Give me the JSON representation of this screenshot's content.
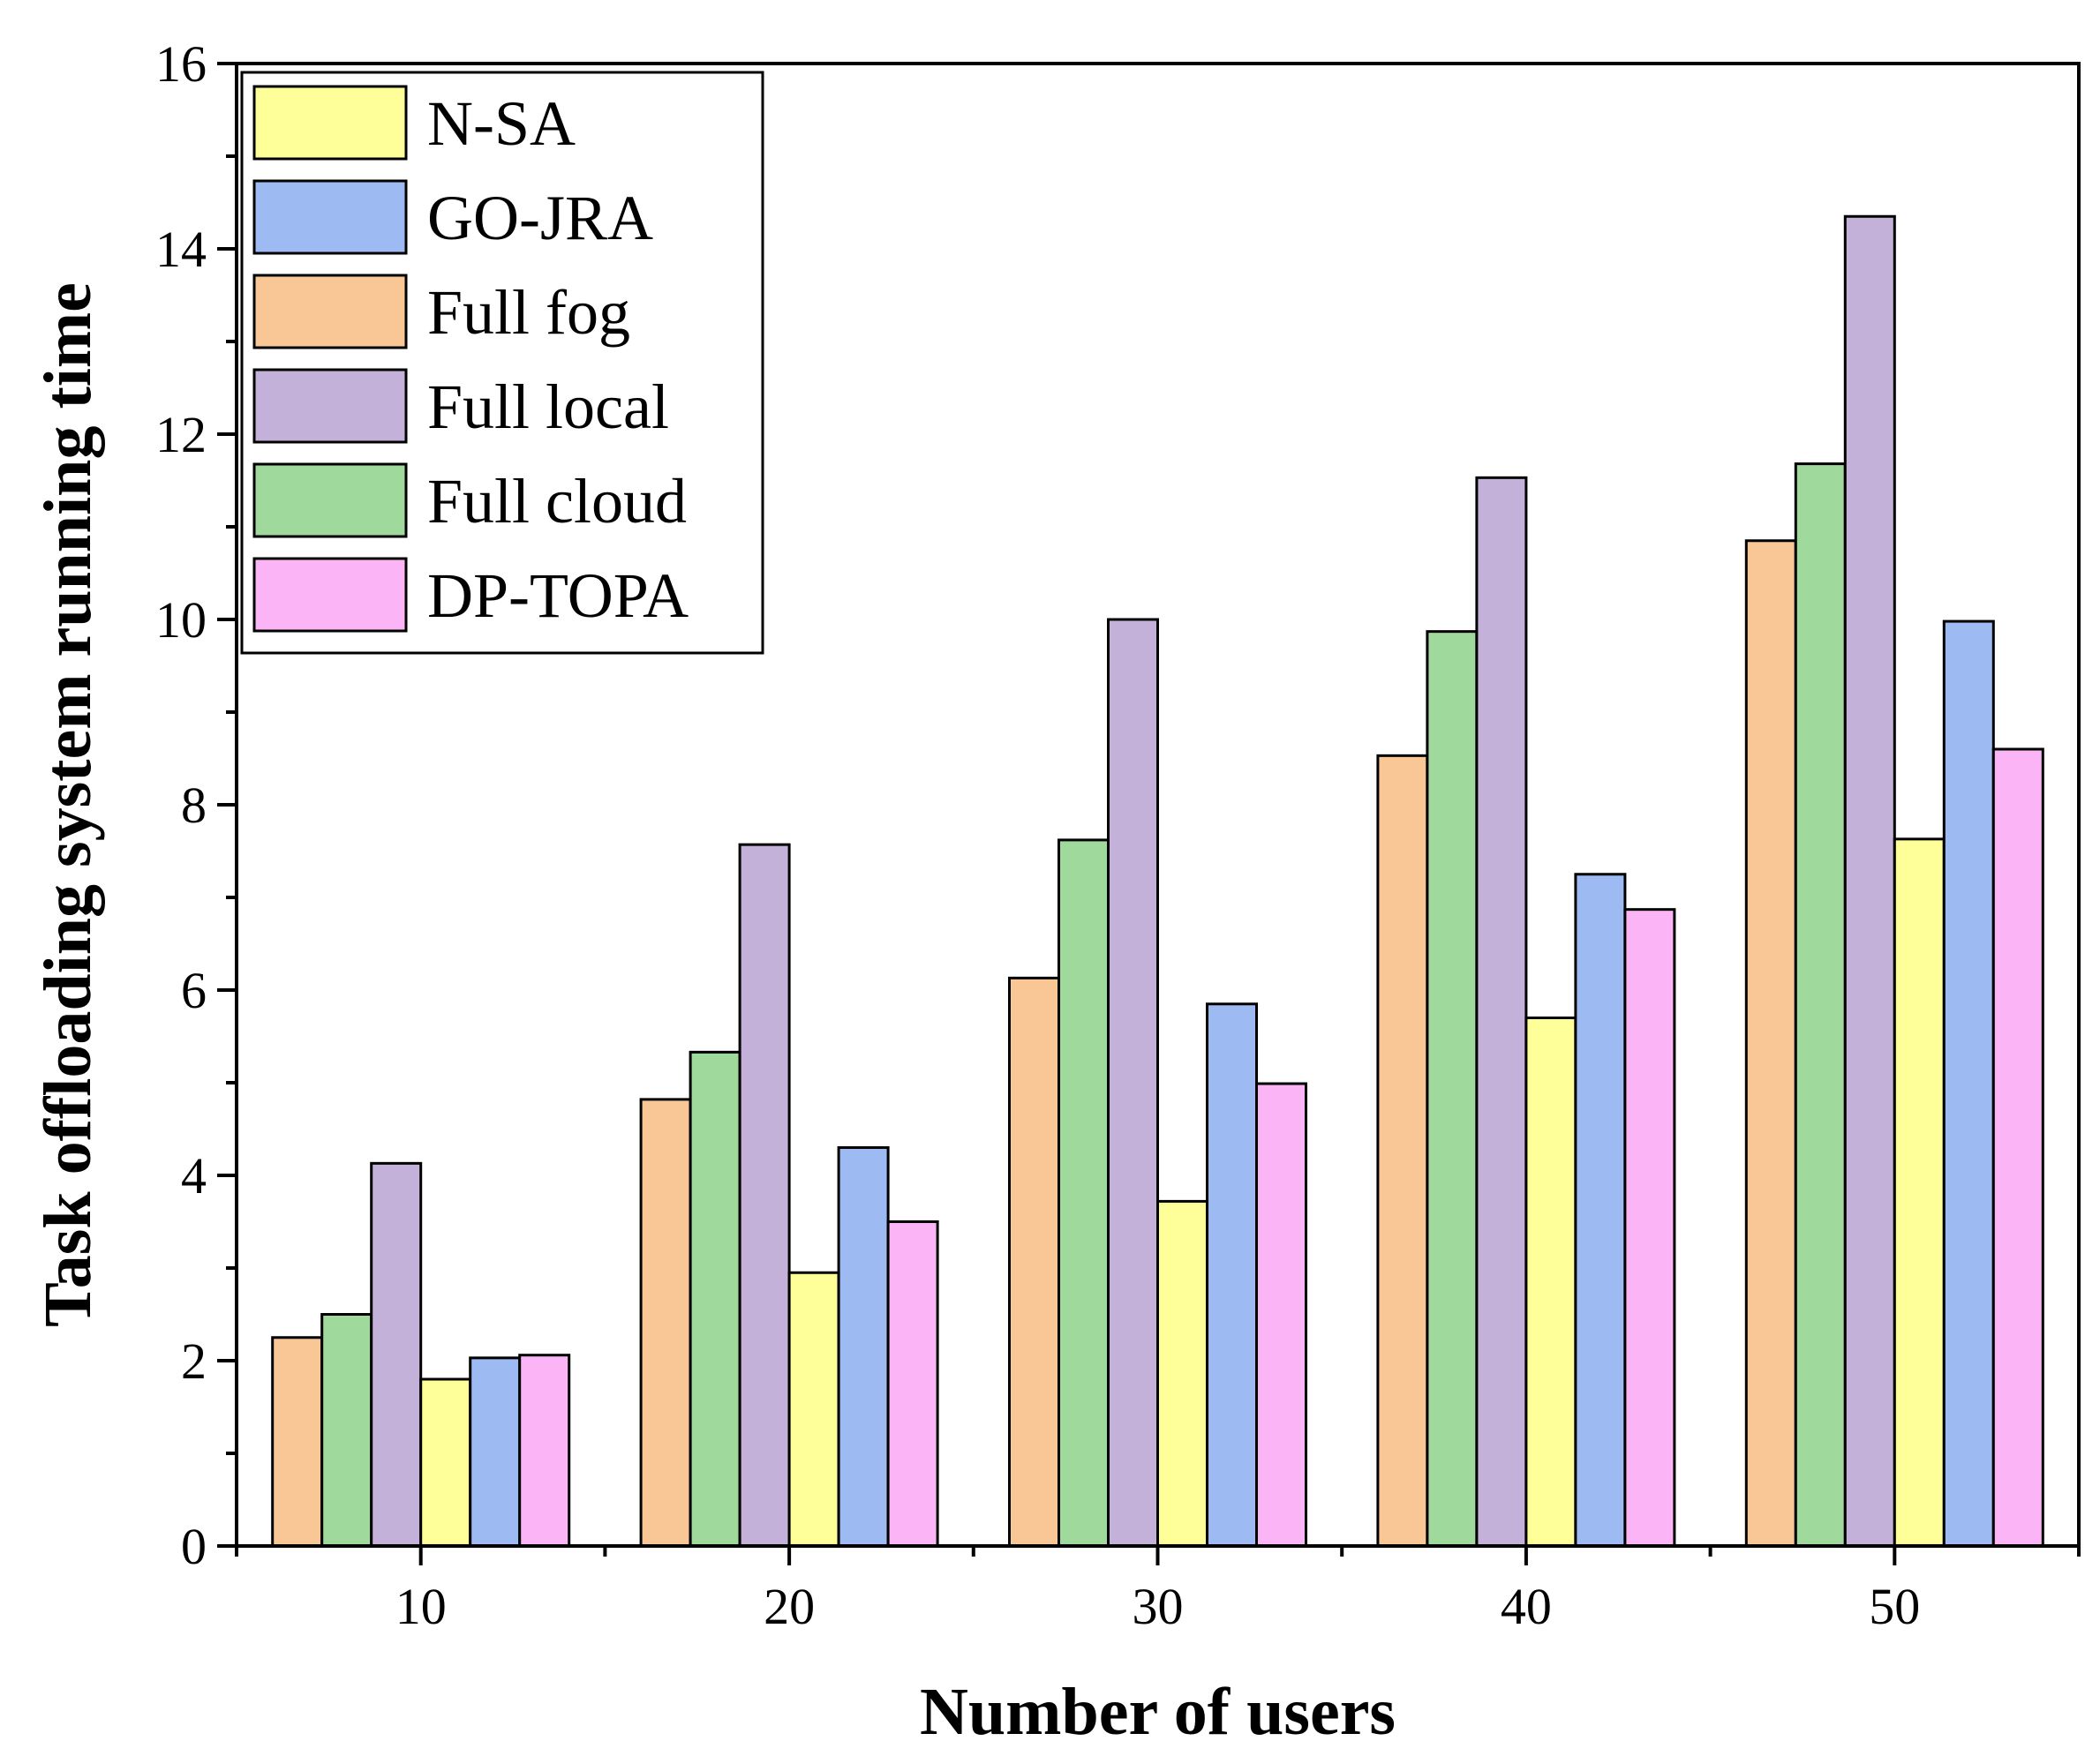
{
  "chart_data": {
    "type": "bar",
    "title": "",
    "xlabel": "Number of users",
    "ylabel": "Task offloading system running time",
    "categories": [
      "10",
      "20",
      "30",
      "40",
      "50"
    ],
    "ylim": [
      0,
      16
    ],
    "yticks": [
      "0",
      "2",
      "4",
      "6",
      "8",
      "10",
      "12",
      "14",
      "16"
    ],
    "legend_position": "top-left",
    "bar_order": [
      "Full fog",
      "Full cloud",
      "Full local",
      "N-SA",
      "GO-JRA",
      "DP-TOPA"
    ],
    "series": [
      {
        "name": "N-SA",
        "color": "#FFFF99",
        "values": [
          1.8,
          2.95,
          3.72,
          5.7,
          7.63
        ]
      },
      {
        "name": "GO-JRA",
        "color": "#9DBBF2",
        "values": [
          2.03,
          4.3,
          5.85,
          7.25,
          9.98
        ]
      },
      {
        "name": "Full fog",
        "color": "#F9C796",
        "values": [
          2.25,
          4.82,
          6.13,
          8.53,
          10.85
        ]
      },
      {
        "name": "Full local",
        "color": "#C3B1D9",
        "values": [
          4.13,
          7.57,
          10.0,
          11.53,
          14.35
        ]
      },
      {
        "name": "Full cloud",
        "color": "#9FD99B",
        "values": [
          2.5,
          5.33,
          7.62,
          9.87,
          11.68
        ]
      },
      {
        "name": "DP-TOPA",
        "color": "#FBB4F5",
        "values": [
          2.06,
          3.5,
          4.99,
          6.87,
          8.6
        ]
      }
    ]
  }
}
